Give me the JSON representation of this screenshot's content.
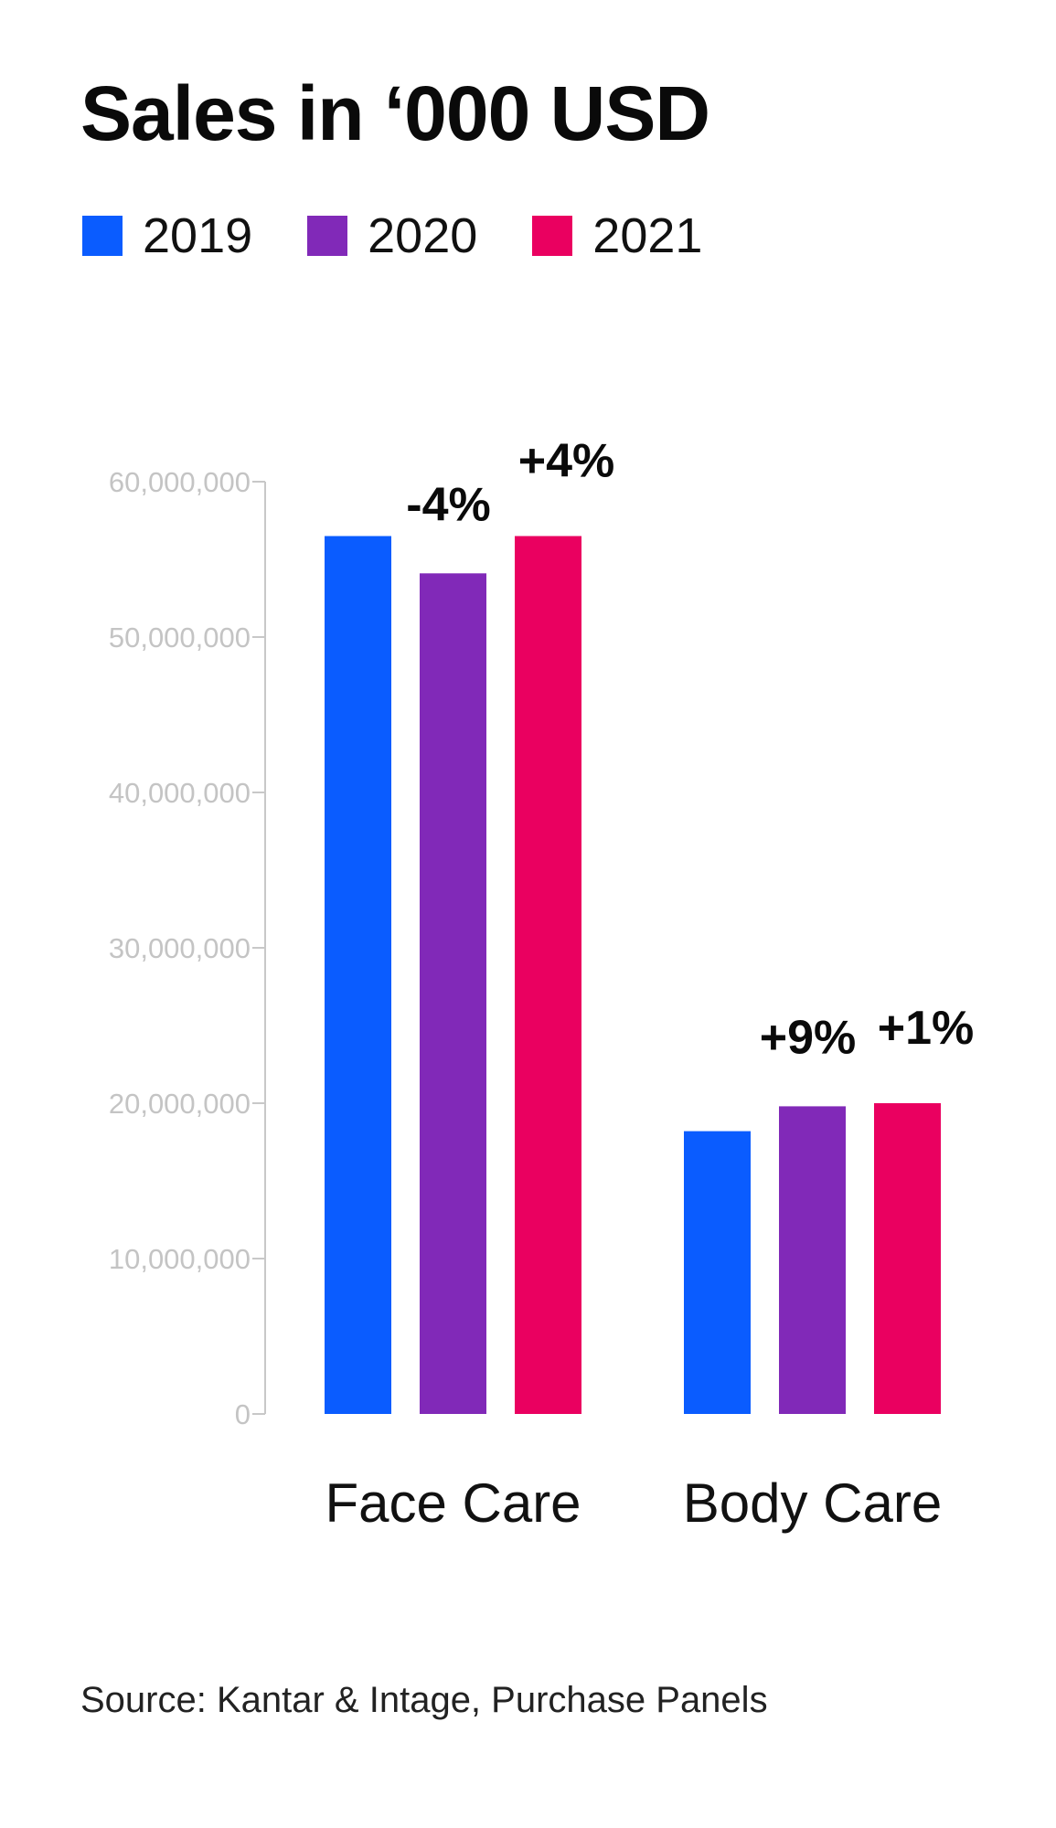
{
  "chart_data": {
    "type": "bar",
    "title": "Sales in ‘000 USD",
    "categories": [
      "Face Care",
      "Body Care"
    ],
    "series": [
      {
        "name": "2019",
        "color": "#0a5cff",
        "values": [
          56500000,
          18200000
        ]
      },
      {
        "name": "2020",
        "color": "#8129b8",
        "values": [
          54100000,
          19800000
        ]
      },
      {
        "name": "2021",
        "color": "#ea0060",
        "values": [
          56500000,
          20000000
        ]
      }
    ],
    "data_labels": [
      {
        "category": "Face Care",
        "series": "2020",
        "text": "-4%"
      },
      {
        "category": "Face Care",
        "series": "2021",
        "text": "+4%"
      },
      {
        "category": "Body Care",
        "series": "2020",
        "text": "+9%"
      },
      {
        "category": "Body Care",
        "series": "2021",
        "text": "+1%"
      }
    ],
    "ylim": [
      0,
      60000000
    ],
    "yticks": [
      0,
      10000000,
      20000000,
      30000000,
      40000000,
      50000000,
      60000000
    ],
    "ytick_labels": [
      "0",
      "10,000,000",
      "20,000,000",
      "30,000,000",
      "40,000,000",
      "50,000,000",
      "60,000,000"
    ],
    "xlabel": "",
    "ylabel": "",
    "grid": false,
    "legend_position": "top-left"
  },
  "source": "Source: Kantar & Intage, Purchase Panels"
}
